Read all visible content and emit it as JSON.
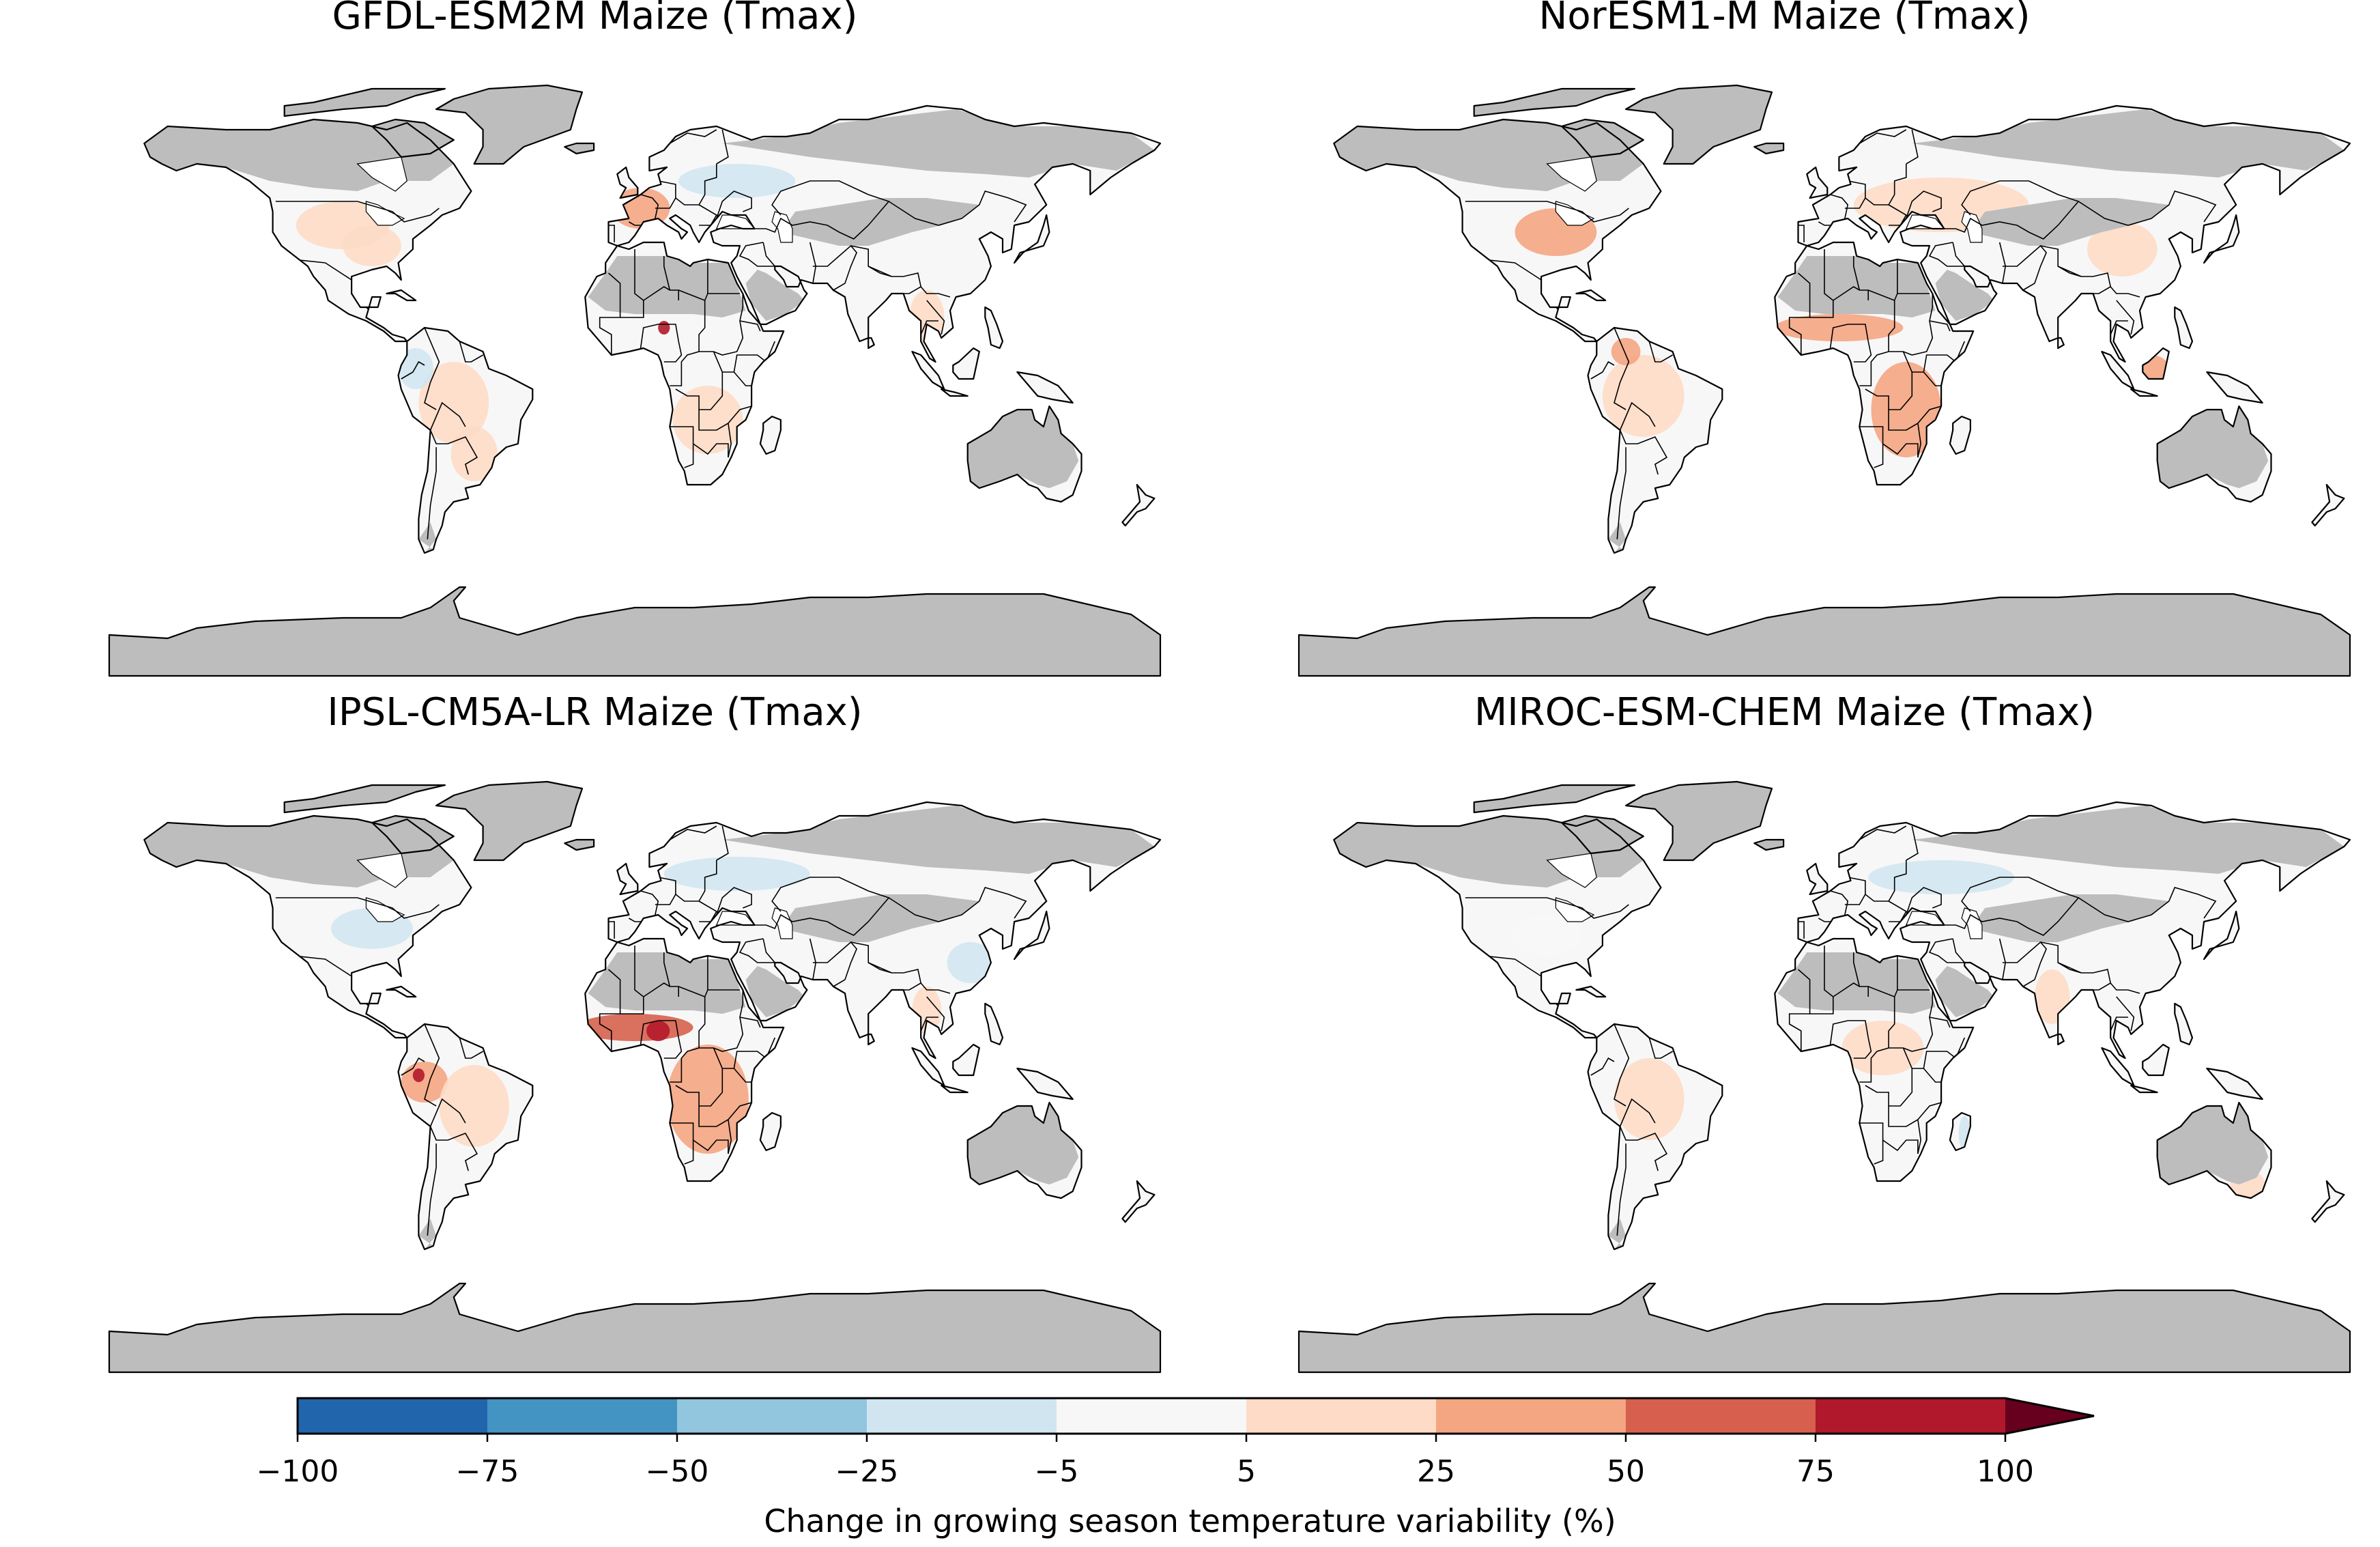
{
  "panels": [
    {
      "title": "GFDL-ESM2M Maize (Tmax)",
      "patches": [
        {
          "lon": -100,
          "lat": 42,
          "rx": 16,
          "ry": 7,
          "cls": 6
        },
        {
          "lon": -90,
          "lat": 36,
          "rx": 10,
          "ry": 6,
          "cls": 6
        },
        {
          "lon": -62,
          "lat": -10,
          "rx": 12,
          "ry": 12,
          "cls": 6
        },
        {
          "lon": -55,
          "lat": -25,
          "rx": 8,
          "ry": 8,
          "cls": 6
        },
        {
          "lon": 2,
          "lat": 47,
          "rx": 10,
          "ry": 6,
          "cls": 7
        },
        {
          "lon": 10,
          "lat": 12,
          "rx": 2,
          "ry": 2,
          "cls": 9
        },
        {
          "lon": 25,
          "lat": -15,
          "rx": 12,
          "ry": 10,
          "cls": 6
        },
        {
          "lon": 35,
          "lat": 55,
          "rx": 20,
          "ry": 5,
          "cls": 4
        },
        {
          "lon": 100,
          "lat": 15,
          "rx": 6,
          "ry": 8,
          "cls": 6
        },
        {
          "lon": -75,
          "lat": 0,
          "rx": 6,
          "ry": 6,
          "cls": 4
        }
      ]
    },
    {
      "title": "NorESM1-M Maize (Tmax)",
      "patches": [
        {
          "lon": -92,
          "lat": 40,
          "rx": 14,
          "ry": 7,
          "cls": 7
        },
        {
          "lon": -62,
          "lat": -8,
          "rx": 14,
          "ry": 12,
          "cls": 6
        },
        {
          "lon": -68,
          "lat": 5,
          "rx": 5,
          "ry": 4,
          "cls": 7
        },
        {
          "lon": 5,
          "lat": 12,
          "rx": 22,
          "ry": 4,
          "cls": 7
        },
        {
          "lon": 28,
          "lat": -12,
          "rx": 12,
          "ry": 14,
          "cls": 7
        },
        {
          "lon": 40,
          "lat": 48,
          "rx": 30,
          "ry": 8,
          "cls": 6
        },
        {
          "lon": 112,
          "lat": 0,
          "rx": 6,
          "ry": 4,
          "cls": 7
        },
        {
          "lon": 80,
          "lat": 22,
          "rx": 8,
          "ry": 8,
          "cls": 5
        },
        {
          "lon": 102,
          "lat": 35,
          "rx": 12,
          "ry": 8,
          "cls": 6
        }
      ]
    },
    {
      "title": "IPSL-CM5A-LR Maize (Tmax)",
      "patches": [
        {
          "lon": -90,
          "lat": 40,
          "rx": 14,
          "ry": 6,
          "cls": 4
        },
        {
          "lon": -72,
          "lat": -5,
          "rx": 8,
          "ry": 6,
          "cls": 7
        },
        {
          "lon": -74,
          "lat": -3,
          "rx": 2,
          "ry": 2,
          "cls": 9
        },
        {
          "lon": -55,
          "lat": -12,
          "rx": 12,
          "ry": 12,
          "cls": 6
        },
        {
          "lon": 0,
          "lat": 11,
          "rx": 20,
          "ry": 4,
          "cls": 8
        },
        {
          "lon": 8,
          "lat": 10,
          "rx": 4,
          "ry": 3,
          "cls": 9
        },
        {
          "lon": 25,
          "lat": -10,
          "rx": 14,
          "ry": 16,
          "cls": 7
        },
        {
          "lon": 35,
          "lat": 56,
          "rx": 25,
          "ry": 5,
          "cls": 4
        },
        {
          "lon": 100,
          "lat": 16,
          "rx": 5,
          "ry": 7,
          "cls": 6
        },
        {
          "lon": 115,
          "lat": 30,
          "rx": 8,
          "ry": 6,
          "cls": 4
        }
      ]
    },
    {
      "title": "MIROC-ESM-CHEM Maize (Tmax)",
      "patches": [
        {
          "lon": -95,
          "lat": 38,
          "rx": 12,
          "ry": 6,
          "cls": 5
        },
        {
          "lon": -60,
          "lat": -10,
          "rx": 12,
          "ry": 12,
          "cls": 6
        },
        {
          "lon": 20,
          "lat": 5,
          "rx": 14,
          "ry": 8,
          "cls": 6
        },
        {
          "lon": 78,
          "lat": 20,
          "rx": 6,
          "ry": 8,
          "cls": 6
        },
        {
          "lon": 40,
          "lat": 55,
          "rx": 25,
          "ry": 5,
          "cls": 4
        },
        {
          "lon": 145,
          "lat": -35,
          "rx": 6,
          "ry": 4,
          "cls": 6
        },
        {
          "lon": 48,
          "lat": -20,
          "rx": 2,
          "ry": 5,
          "cls": 4
        }
      ]
    }
  ],
  "colorbar": {
    "boundaries": [
      -100,
      -75,
      -50,
      -25,
      -5,
      5,
      25,
      50,
      75,
      100
    ],
    "tick_labels": [
      "−100",
      "−75",
      "−50",
      "−25",
      "−5",
      "5",
      "25",
      "50",
      "75",
      "100"
    ],
    "colors": [
      "#2166ac",
      "#4393c3",
      "#92c5de",
      "#d1e5f0",
      "#f7f7f7",
      "#fddbc7",
      "#f4a582",
      "#d6604d",
      "#b2182b"
    ],
    "extend_color": "#67001f",
    "label": "Change in growing season temperature variability (%)"
  },
  "style": {
    "land_gray": "#bdbdbd",
    "default_land": "#f7f7f7"
  }
}
